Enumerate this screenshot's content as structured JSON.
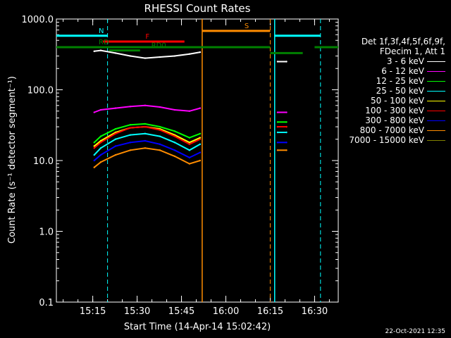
{
  "chart_data": {
    "type": "line",
    "title": "RHESSI Count Rates",
    "xlabel": "Start Time (14-Apr-14 15:02:42)",
    "ylabel": "Count Rate (s⁻¹ detector segment⁻¹)",
    "log_y": true,
    "ylim": [
      0.1,
      1000
    ],
    "xlim_minutes_after_start": [
      0,
      95.3
    ],
    "xticks": [
      {
        "minute": 12.3,
        "label": "15:15"
      },
      {
        "minute": 27.3,
        "label": "15:30"
      },
      {
        "minute": 42.3,
        "label": "15:45"
      },
      {
        "minute": 57.3,
        "label": "16:00"
      },
      {
        "minute": 72.3,
        "label": "16:15"
      },
      {
        "minute": 87.3,
        "label": "16:30"
      }
    ],
    "yticks": [
      {
        "value": 1000,
        "label": "1000.0"
      },
      {
        "value": 100,
        "label": "100.0"
      },
      {
        "value": 10,
        "label": "10.0"
      },
      {
        "value": 1,
        "label": "1.0"
      },
      {
        "value": 0.1,
        "label": "0.1"
      }
    ],
    "legend_header": [
      "Det 1f,3f,4f,5f,6f,9f,",
      "FDecim 1, Att 1"
    ],
    "legend_placement": "right",
    "series": [
      {
        "name": "3 - 6 keV",
        "color": "#ffffff",
        "segments": [
          {
            "x": [
              12.8,
              15,
              20,
              25,
              30,
              35,
              40,
              45,
              48.6
            ],
            "y": [
              350,
              360,
              330,
              300,
              280,
              290,
              300,
              320,
              340
            ]
          },
          {
            "x": [
              74.8,
              77.8
            ],
            "y": [
              250,
              250
            ]
          }
        ]
      },
      {
        "name": "6 - 12 keV",
        "color": "#ff00ff",
        "segments": [
          {
            "x": [
              12.8,
              15,
              20,
              25,
              30,
              35,
              40,
              45,
              48.6
            ],
            "y": [
              48,
              52,
              55,
              58,
              60,
              57,
              52,
              50,
              55
            ]
          },
          {
            "x": [
              74.8,
              77.8
            ],
            "y": [
              48,
              48
            ]
          }
        ]
      },
      {
        "name": "12 - 25 keV",
        "color": "#00ff00",
        "segments": [
          {
            "x": [
              12.8,
              15,
              20,
              25,
              30,
              35,
              40,
              45,
              48.6
            ],
            "y": [
              18,
              22,
              28,
              32,
              33,
              30,
              26,
              21,
              24
            ]
          },
          {
            "x": [
              74.8,
              77.8
            ],
            "y": [
              35,
              35
            ]
          }
        ]
      },
      {
        "name": "25 - 50 keV",
        "color": "#00ffff",
        "segments": [
          {
            "x": [
              12.8,
              15,
              20,
              25,
              30,
              35,
              40,
              45,
              48.6
            ],
            "y": [
              12,
              15,
              20,
              23,
              24,
              22,
              18,
              14,
              17
            ]
          },
          {
            "x": [
              74.8,
              77.8
            ],
            "y": [
              25,
              25
            ]
          }
        ]
      },
      {
        "name": "50 - 100 keV",
        "color": "#ffff00",
        "segments": [
          {
            "x": [
              12.8,
              15,
              20,
              25,
              30,
              35,
              40,
              45,
              48.6
            ],
            "y": [
              16,
              19,
              25,
              29,
              30,
              28,
              23,
              18,
              21
            ]
          },
          {
            "x": [
              74.8,
              77.8
            ],
            "y": [
              30,
              30
            ]
          }
        ]
      },
      {
        "name": "100 - 300 keV",
        "color": "#ff0000",
        "segments": [
          {
            "x": [
              12.8,
              15,
              20,
              25,
              30,
              35,
              40,
              45,
              48.6
            ],
            "y": [
              15,
              18,
              24,
              29,
              30,
              27,
              22,
              17,
              20
            ]
          },
          {
            "x": [
              74.8,
              77.8
            ],
            "y": [
              30,
              30
            ]
          }
        ]
      },
      {
        "name": "300 - 800 keV",
        "color": "#0000ff",
        "segments": [
          {
            "x": [
              12.8,
              15,
              20,
              25,
              30,
              35,
              40,
              45,
              48.6
            ],
            "y": [
              10,
              12,
              16,
              18,
              19,
              17,
              14,
              11,
              13
            ]
          },
          {
            "x": [
              74.8,
              77.8
            ],
            "y": [
              18,
              18
            ]
          }
        ]
      },
      {
        "name": "800 - 7000 keV",
        "color": "#ff8c00",
        "segments": [
          {
            "x": [
              12.8,
              15,
              20,
              25,
              30,
              35,
              40,
              45,
              48.6
            ],
            "y": [
              8,
              9.5,
              12,
              14,
              15,
              14,
              11.5,
              9,
              10
            ]
          },
          {
            "x": [
              74.8,
              77.8
            ],
            "y": [
              14,
              14
            ]
          }
        ]
      },
      {
        "name": "7000 - 15000 keV",
        "color": "#808000",
        "segments": []
      }
    ],
    "markers": {
      "solid_vlines": [
        {
          "minute": 49.3,
          "color": "#ff8c00"
        },
        {
          "minute": 73.8,
          "color": "#00ffff"
        }
      ],
      "dashed_vlines": [
        {
          "minute": 17.3,
          "color": "#00ffff"
        },
        {
          "minute": 72.3,
          "color": "#ff8c00"
        },
        {
          "minute": 89.3,
          "color": "#00ffff"
        }
      ],
      "bars": [
        {
          "label": "N",
          "color": "#00ffff",
          "start": 0,
          "end": 17.3,
          "y": 580
        },
        {
          "label": "",
          "color": "#00ffff",
          "start": 73.8,
          "end": 89.3,
          "y": 580
        },
        {
          "label": "S",
          "color": "#ff8c00",
          "start": 49.3,
          "end": 72.3,
          "y": 680
        },
        {
          "label": "F",
          "color": "#ff0000",
          "start": 15.8,
          "end": 43.3,
          "y": 480
        },
        {
          "label": "RD",
          "color": "#008000",
          "start": 0,
          "end": 72.3,
          "y": 400
        },
        {
          "label": "",
          "color": "#008000",
          "start": 72.3,
          "end": 83.3,
          "y": 330
        },
        {
          "label": "",
          "color": "#008000",
          "start": 87.3,
          "end": 95.3,
          "y": 400
        },
        {
          "label": "RD0",
          "color": "#008000",
          "start": 17.8,
          "end": 28.3,
          "y": 360
        }
      ]
    }
  },
  "footer_date": "22-Oct-2021 12:35"
}
